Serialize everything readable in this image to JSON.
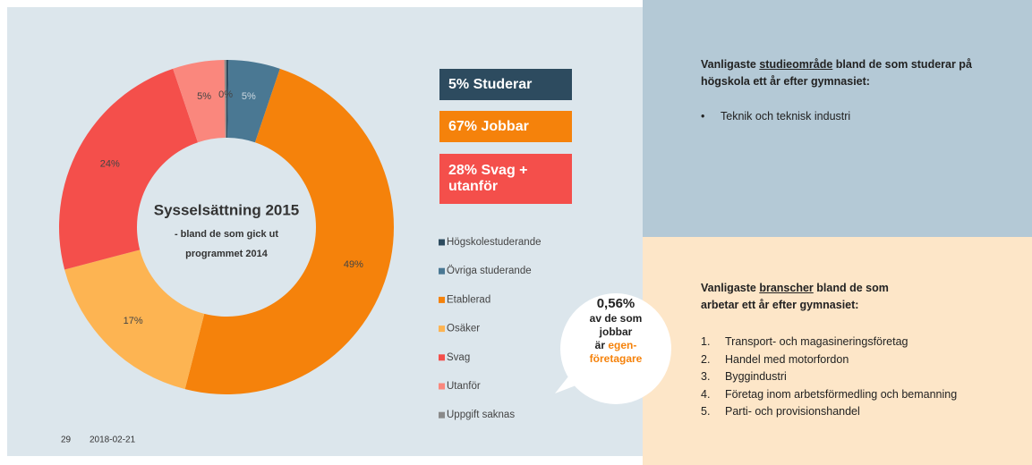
{
  "chart_data": {
    "type": "donut",
    "title": "Sysselsättning 2015",
    "subtitle": [
      "- bland de som gick ut",
      "programmet 2014"
    ],
    "categories": [
      "Högskolestuderande",
      "Övriga studerande",
      "Etablerad",
      "Osäker",
      "Svag",
      "Utanför",
      "Uppgift saknas"
    ],
    "values": [
      0.2,
      5,
      49,
      17,
      24,
      5,
      0.2
    ],
    "value_labels": [
      null,
      "5%",
      "49%",
      "17%",
      "24%",
      "5%",
      "0%"
    ],
    "colors": [
      "#2d4b5f",
      "#4a7893",
      "#f5820b",
      "#fdb452",
      "#f44f4b",
      "#fa877d",
      "#8a8a8a"
    ],
    "legend": "right"
  },
  "summary": [
    {
      "text": "5% Studerar",
      "color": "#2d4b5f"
    },
    {
      "text": "67% Jobbar",
      "color": "#f5820b"
    },
    {
      "text": "28% Svag + utanför",
      "color": "#f44f4b"
    }
  ],
  "bubble": {
    "value": "0,56%",
    "line1": "av de som",
    "line2": "jobbar",
    "line3a": "är",
    "line3b": "egen-",
    "line4": "företagare"
  },
  "footer": {
    "page": "29",
    "date": "2018-02-21"
  },
  "study": {
    "title_a": "Vanligaste",
    "title_u": "studieområde",
    "title_b": "bland de som studerar på högskola ett år efter gymnasiet:",
    "items": [
      "Teknik och teknisk industri"
    ]
  },
  "branches": {
    "title_a": "Vanligaste",
    "title_u": "branscher",
    "title_b": "bland de som arbetar ett år efter gymnasiet:",
    "items": [
      "Transport- och magasineringsföretag",
      "Handel med motorfordon",
      "Byggindustri",
      "Företag inom arbetsförmedling och bemanning",
      "Parti- och provisionshandel"
    ]
  }
}
